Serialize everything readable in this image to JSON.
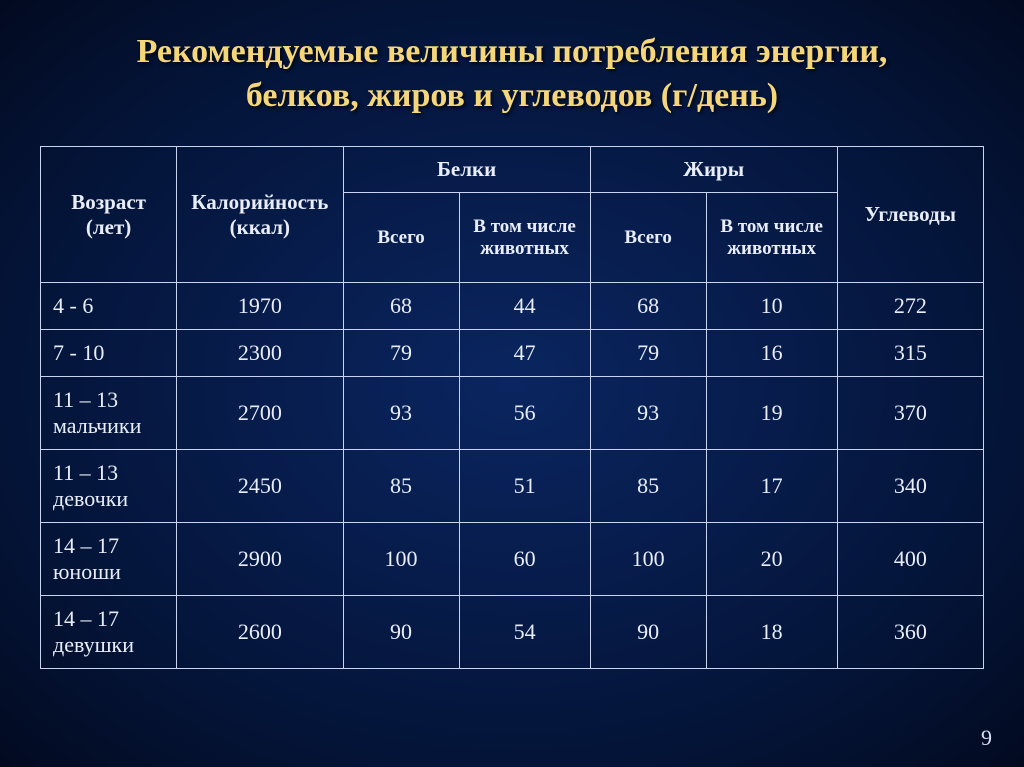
{
  "title_line1": "Рекомендуемые величины потребления энергии,",
  "title_line2": "белков, жиров и углеводов (г/день)",
  "head": {
    "age": "Возраст (лет)",
    "cal": "Калорийность (ккал)",
    "protein": "Белки",
    "fat": "Жиры",
    "carb": "Углеводы",
    "total": "Всего",
    "animal": "В том числе животных"
  },
  "rows": [
    {
      "age": "4 - 6",
      "cal": "1970",
      "pt": "68",
      "pa": "44",
      "ft": "68",
      "fa": "10",
      "c": "272"
    },
    {
      "age": "7 - 10",
      "cal": "2300",
      "pt": "79",
      "pa": "47",
      "ft": "79",
      "fa": "16",
      "c": "315"
    },
    {
      "age": "11 – 13 мальчики",
      "cal": "2700",
      "pt": "93",
      "pa": "56",
      "ft": "93",
      "fa": "19",
      "c": "370"
    },
    {
      "age": "11 – 13 девочки",
      "cal": "2450",
      "pt": "85",
      "pa": "51",
      "ft": "85",
      "fa": "17",
      "c": "340"
    },
    {
      "age": "14 – 17 юноши",
      "cal": "2900",
      "pt": "100",
      "pa": "60",
      "ft": "100",
      "fa": "20",
      "c": "400"
    },
    {
      "age": "14 – 17 девушки",
      "cal": "2600",
      "pt": "90",
      "pa": "54",
      "ft": "90",
      "fa": "18",
      "c": "360"
    }
  ],
  "page_number": "9",
  "style": {
    "title_color": "#f5d77a",
    "text_color": "#e8edf8",
    "border_color": "#c8d4f0",
    "bg_center": "#0a2560",
    "bg_edge": "#020a20",
    "title_fontsize": 34,
    "header_fontsize": 21,
    "subheader_fontsize": 19,
    "cell_fontsize": 22
  }
}
